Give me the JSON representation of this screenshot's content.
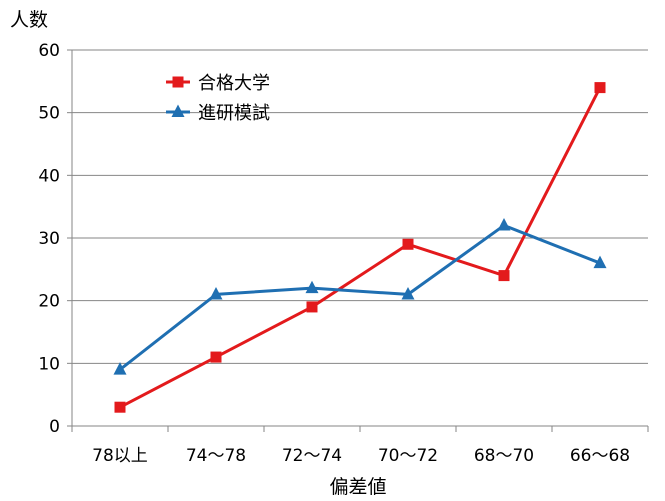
{
  "chart_data": {
    "type": "line",
    "ylabel": "人数",
    "xlabel": "偏差値",
    "categories": [
      "78以上",
      "74～78",
      "72～74",
      "70～72",
      "68～70",
      "66～68"
    ],
    "ylim": [
      0,
      60
    ],
    "yticks": [
      0,
      10,
      20,
      30,
      40,
      50,
      60
    ],
    "grid": true,
    "legend_position": "top-left",
    "series": [
      {
        "name": "合格大学",
        "values": [
          3,
          11,
          19,
          29,
          24,
          54
        ],
        "color": "#e31a1c",
        "marker": "square"
      },
      {
        "name": "進研模試",
        "values": [
          9,
          21,
          22,
          21,
          32,
          26
        ],
        "color": "#1f6fb2",
        "marker": "triangle"
      }
    ]
  }
}
